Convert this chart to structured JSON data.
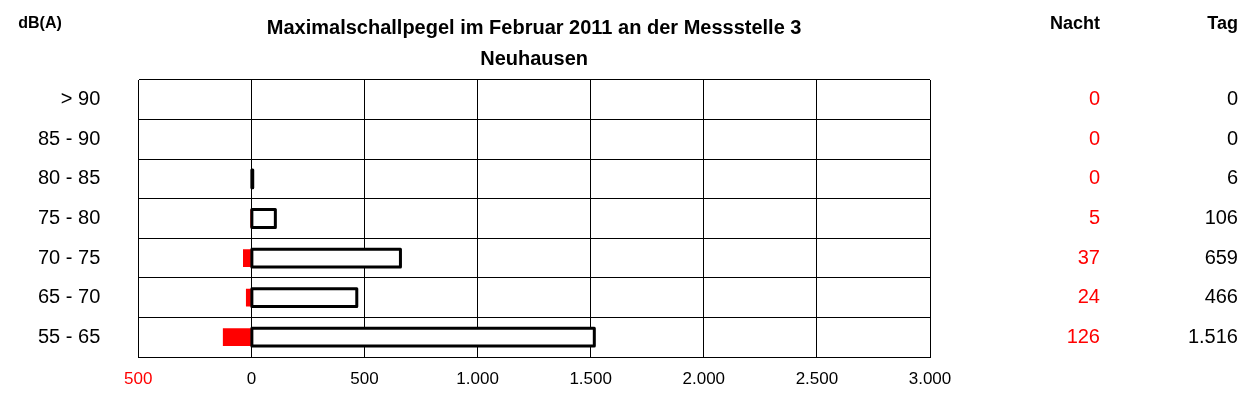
{
  "chart_data": {
    "type": "bar",
    "orientation": "horizontal",
    "title": "Maximalschallpegel im Februar 2011 an der Messstelle 3 Neuhausen",
    "ylabel": "dB(A)",
    "categories": [
      "> 90",
      "85 - 90",
      "80 - 85",
      "75 - 80",
      "70 - 75",
      "65 - 70",
      "55 - 65"
    ],
    "series": [
      {
        "name": "Nacht",
        "color": "#ff0000",
        "values": [
          0,
          0,
          0,
          5,
          37,
          24,
          126
        ],
        "base": [
          null,
          null,
          null,
          -5,
          -37,
          -24,
          -126
        ],
        "value_labels": [
          "0",
          "0",
          "0",
          "5",
          "37",
          "24",
          "126"
        ]
      },
      {
        "name": "Tag",
        "color": "#ffffff",
        "values": [
          0,
          0,
          6,
          106,
          659,
          466,
          1516
        ],
        "value_labels": [
          "0",
          "0",
          "6",
          "106",
          "659",
          "466",
          "1.516"
        ]
      }
    ],
    "xlim": [
      -500,
      3000
    ],
    "xticks": [
      {
        "value": -500,
        "label": "500"
      },
      0,
      {
        "value": 500,
        "label": "500"
      },
      {
        "value": 1000,
        "label": "1.000"
      },
      {
        "value": 1500,
        "label": "1.500"
      },
      {
        "value": 2000,
        "label": "2.000"
      },
      {
        "value": 2500,
        "label": "2.500"
      },
      {
        "value": 3000,
        "label": "3.000"
      }
    ],
    "grid": true,
    "legend": false
  }
}
